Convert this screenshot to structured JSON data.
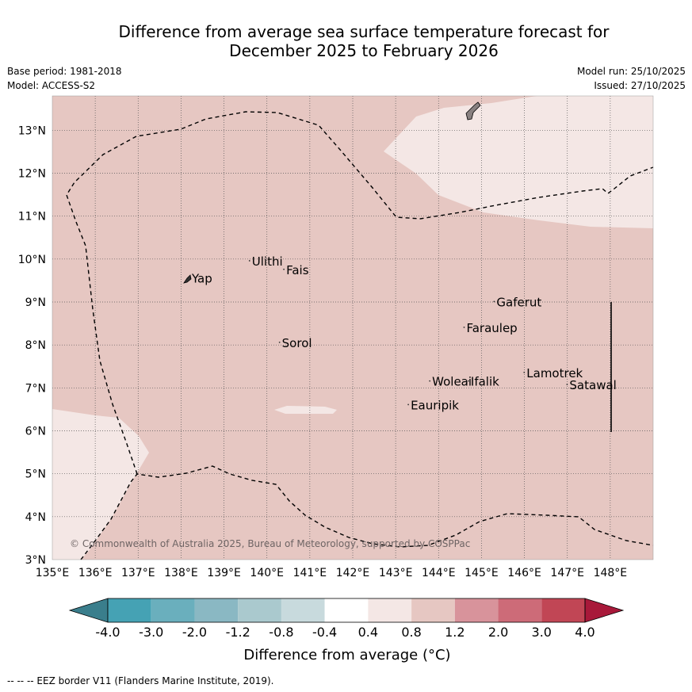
{
  "title": {
    "line1": "Difference from average sea surface temperature forecast for",
    "line2": "December 2025 to February 2026"
  },
  "meta_left": {
    "base_period": "Base period: 1981-2018",
    "model": "Model: ACCESS-S2"
  },
  "meta_right": {
    "model_run": "Model run: 25/10/2025",
    "issued": "Issued: 27/10/2025"
  },
  "map": {
    "lon_range": [
      135,
      149
    ],
    "lat_range": [
      3,
      13.8
    ],
    "lon_ticks": [
      "135°E",
      "136°E",
      "137°E",
      "138°E",
      "139°E",
      "140°E",
      "141°E",
      "142°E",
      "143°E",
      "144°E",
      "145°E",
      "146°E",
      "147°E",
      "148°E"
    ],
    "lat_ticks": [
      "3°N",
      "4°N",
      "5°N",
      "6°N",
      "7°N",
      "8°N",
      "9°N",
      "10°N",
      "11°N",
      "12°N",
      "13°N"
    ],
    "places": [
      {
        "name": "Yap",
        "lon": 138.25,
        "lat": 9.45
      },
      {
        "name": "Ulithi",
        "lon": 139.65,
        "lat": 9.85
      },
      {
        "name": "Fais",
        "lon": 140.45,
        "lat": 9.65
      },
      {
        "name": "Gaferut",
        "lon": 145.35,
        "lat": 8.9
      },
      {
        "name": "Faraulep",
        "lon": 144.65,
        "lat": 8.3
      },
      {
        "name": "Sorol",
        "lon": 140.35,
        "lat": 7.95
      },
      {
        "name": "Woleai",
        "lon": 143.85,
        "lat": 7.05
      },
      {
        "name": "Ifalik",
        "lon": 144.75,
        "lat": 7.05
      },
      {
        "name": "Lamotrek",
        "lon": 146.05,
        "lat": 7.25
      },
      {
        "name": "Satawal",
        "lon": 147.05,
        "lat": 6.97
      },
      {
        "name": "Eauripik",
        "lon": 143.35,
        "lat": 6.5
      }
    ],
    "copyright": "© Commonwealth of Australia 2025, Bureau of Meteorology, supported by COSPPac",
    "colors": {
      "background": "#e6c7c2",
      "light_band": "#f4e7e5",
      "land": "#888080"
    }
  },
  "colorbar": {
    "ticks": [
      "-4.0",
      "-3.0",
      "-2.0",
      "-1.2",
      "-0.8",
      "-0.4",
      "0.4",
      "0.8",
      "1.2",
      "2.0",
      "3.0",
      "4.0"
    ],
    "colors": [
      "#3a7e8c",
      "#45a2b4",
      "#6aafbd",
      "#8ab8c3",
      "#aac9ce",
      "#c8dadd",
      "#ffffff",
      "#f4e7e5",
      "#e6c7c2",
      "#d8939b",
      "#cd6b78",
      "#c14655",
      "#a8193a"
    ],
    "label": "Difference from average (°C)"
  },
  "footer": "-- -- -- EEZ border V11 (Flanders Marine Institute, 2019)."
}
